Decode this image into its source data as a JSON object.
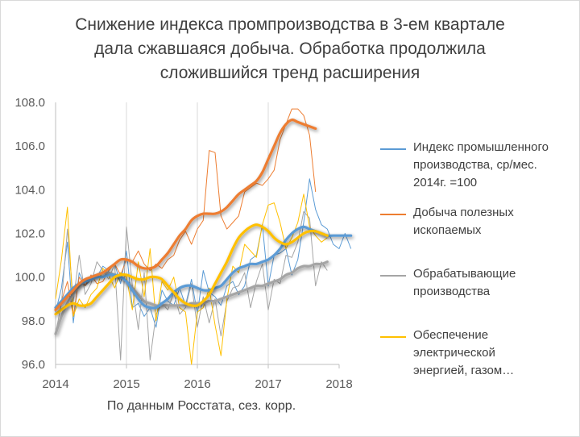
{
  "chart_data": {
    "type": "line",
    "title": "Снижение индекса промпроизводства в 3-ем квартале\nдала сжавшаяся добыча. Обработка продолжила\nсложившийся тренд расширения",
    "note": "По данным Росстата, сез. корр.",
    "x_start": "2014-01",
    "xlim": [
      "2014-01",
      "2018-01"
    ],
    "ylim": [
      96.0,
      108.0
    ],
    "x_ticks": [
      "2014",
      "2015",
      "2016",
      "2017",
      "2018"
    ],
    "y_ticks": [
      "96.0",
      "98.0",
      "100.0",
      "102.0",
      "104.0",
      "106.0",
      "108.0"
    ],
    "grid": {
      "vertical": true,
      "horizontal": false
    },
    "legend_position": "right",
    "series": [
      {
        "name": "Индекс промышленного\nпроизводства, ср/мес.\n2014г. =100",
        "color": "#5b9bd5",
        "values": [
          98.4,
          99.5,
          101.6,
          97.9,
          100.2,
          99.6,
          99.9,
          100.0,
          100.5,
          100.3,
          100.6,
          99.7,
          101.2,
          98.6,
          98.8,
          98.2,
          98.6,
          97.7,
          99.4,
          98.9,
          98.7,
          99.5,
          98.7,
          99.9,
          98.3,
          100.3,
          99.3,
          99.1,
          98.7,
          99.6,
          99.8,
          99.2,
          99.6,
          100.8,
          101.0,
          102.4,
          99.6,
          101.0,
          101.1,
          101.3,
          100.1,
          100.8,
          102.5,
          104.5,
          103.1,
          102.4,
          102.2,
          101.5,
          101.3,
          102.0,
          101.3
        ],
        "trend": [
          98.6,
          98.9,
          99.2,
          99.5,
          99.7,
          99.8,
          99.9,
          100.0,
          100.0,
          100.1,
          100.1,
          100.0,
          99.8,
          99.4,
          99.0,
          98.7,
          98.6,
          98.6,
          98.8,
          99.0,
          99.3,
          99.5,
          99.6,
          99.6,
          99.5,
          99.4,
          99.4,
          99.5,
          99.6,
          99.9,
          100.2,
          100.4,
          100.5,
          100.6,
          100.6,
          100.7,
          100.8,
          101.0,
          101.3,
          101.7,
          102.0,
          102.2,
          102.3,
          102.2,
          102.1,
          102.0,
          101.9,
          101.9,
          101.9,
          101.9,
          101.9
        ]
      },
      {
        "name": "Добыча полезных\nископаемых",
        "color": "#ed7d31",
        "values": [
          98.5,
          98.9,
          99.8,
          98.2,
          100.0,
          99.6,
          100.1,
          99.7,
          99.8,
          100.3,
          100.6,
          100.1,
          100.8,
          100.7,
          101.2,
          100.6,
          100.3,
          100.6,
          100.4,
          100.8,
          101.0,
          101.7,
          102.1,
          101.5,
          102.2,
          102.6,
          105.8,
          105.7,
          102.8,
          102.2,
          102.5,
          102.8,
          103.9,
          104.1,
          104.3,
          104.2,
          104.5,
          104.9,
          106.3,
          107.0,
          107.7,
          107.7,
          107.4,
          106.5,
          103.9
        ],
        "trend": [
          98.5,
          98.8,
          99.1,
          99.4,
          99.7,
          99.9,
          100.0,
          100.1,
          100.2,
          100.4,
          100.6,
          100.8,
          100.8,
          100.7,
          100.5,
          100.4,
          100.4,
          100.5,
          100.8,
          101.1,
          101.5,
          101.9,
          102.2,
          102.6,
          102.8,
          102.9,
          102.9,
          102.9,
          103.0,
          103.2,
          103.5,
          103.8,
          104.0,
          104.2,
          104.4,
          104.8,
          105.4,
          106.0,
          106.6,
          107.0,
          107.2,
          107.1,
          107.0,
          106.9,
          106.8
        ]
      },
      {
        "name": "Обрабатывающие\nпроизводства",
        "color": "#a5a5a5",
        "values": [
          97.4,
          98.8,
          102.2,
          98.9,
          101.0,
          99.2,
          99.7,
          100.7,
          100.3,
          99.9,
          100.6,
          96.2,
          102.3,
          99.6,
          97.6,
          100.2,
          96.2,
          98.3,
          98.8,
          98.5,
          99.3,
          98.3,
          98.6,
          99.7,
          97.7,
          99.1,
          97.9,
          99.0,
          97.3,
          98.9,
          99.5,
          99.6,
          100.2,
          98.6,
          99.8,
          100.6,
          98.5,
          99.9,
          99.7,
          101.0,
          100.9,
          101.6,
          103.0,
          102.7,
          99.6,
          100.7,
          100.3
        ],
        "trend": [
          97.4,
          98.2,
          98.8,
          99.2,
          99.6,
          99.8,
          100.0,
          100.1,
          100.2,
          100.2,
          100.1,
          100.0,
          99.8,
          99.5,
          99.2,
          98.9,
          98.8,
          98.7,
          98.7,
          98.7,
          98.7,
          98.7,
          98.7,
          98.8,
          98.8,
          98.8,
          98.9,
          98.9,
          99.0,
          99.1,
          99.2,
          99.3,
          99.4,
          99.5,
          99.6,
          99.6,
          99.7,
          99.8,
          99.9,
          100.1,
          100.2,
          100.4,
          100.5,
          100.5,
          100.6,
          100.6,
          100.7
        ]
      },
      {
        "name": "Обеспечение\nэлектрической\nэнергией, газом…",
        "color": "#ffc000",
        "values": [
          99.0,
          100.8,
          103.2,
          98.2,
          99.0,
          98.6,
          99.2,
          99.5,
          100.4,
          100.1,
          99.5,
          100.2,
          100.0,
          98.5,
          100.7,
          99.1,
          101.3,
          98.0,
          99.8,
          99.4,
          100.0,
          98.6,
          98.4,
          96.0,
          98.4,
          98.6,
          99.5,
          97.8,
          96.4,
          99.0,
          100.5,
          100.2,
          101.5,
          101.2,
          100.9,
          102.4,
          103.3,
          103.4,
          102.5,
          101.3,
          101.8,
          102.5,
          103.8,
          102.3,
          101.9,
          101.6,
          101.8
        ],
        "trend": [
          98.3,
          98.5,
          98.7,
          98.8,
          98.7,
          98.7,
          98.8,
          99.1,
          99.4,
          99.7,
          100.0,
          100.1,
          100.1,
          100.0,
          99.9,
          99.9,
          100.0,
          100.0,
          99.9,
          99.6,
          99.3,
          99.0,
          98.8,
          98.7,
          98.7,
          98.9,
          99.2,
          99.7,
          100.2,
          100.7,
          101.3,
          101.8,
          102.1,
          102.3,
          102.4,
          102.3,
          102.1,
          101.8,
          101.6,
          101.5,
          101.6,
          101.8,
          102.0,
          102.1,
          102.1,
          102.0,
          101.9
        ]
      }
    ]
  }
}
